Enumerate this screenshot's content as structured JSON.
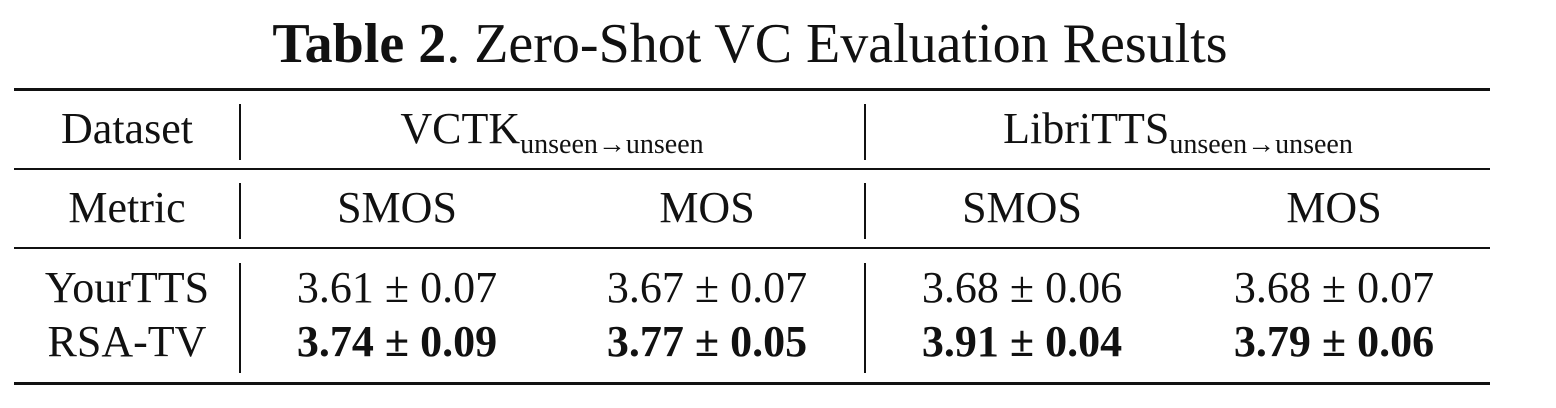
{
  "caption": {
    "label": "Table 2",
    "text": ". Zero-Shot VC Evaluation Results"
  },
  "table": {
    "dataset_label": "Dataset",
    "metric_label": "Metric",
    "groups": [
      {
        "name": "VCTK",
        "subscript": "unseen→unseen"
      },
      {
        "name": "LibriTTS",
        "subscript": "unseen→unseen"
      }
    ],
    "metrics": [
      "SMOS",
      "MOS",
      "SMOS",
      "MOS"
    ],
    "rows": [
      {
        "model": "YourTTS",
        "values": [
          "3.61 ± 0.07",
          "3.67 ± 0.07",
          "3.68 ± 0.06",
          "3.68 ± 0.07"
        ],
        "bold": false
      },
      {
        "model": "RSA-TV",
        "values": [
          "3.74 ± 0.09",
          "3.77 ± 0.05",
          "3.91 ± 0.04",
          "3.79 ± 0.06"
        ],
        "bold": true
      }
    ]
  }
}
